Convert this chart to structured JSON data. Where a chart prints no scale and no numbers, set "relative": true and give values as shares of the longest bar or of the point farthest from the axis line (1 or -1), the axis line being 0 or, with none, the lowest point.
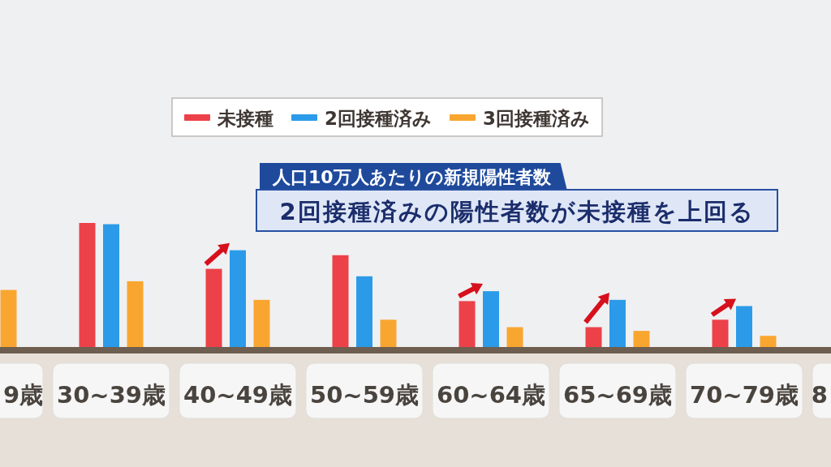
{
  "chart_data": {
    "type": "bar",
    "relative": true,
    "title": "人口10万人あたりの新規陽性者数",
    "subtitle": "2回接種済みの陽性者数が未接種を上回る",
    "categories": [
      "9歳",
      "30~39歳",
      "40~49歳",
      "50~59歳",
      "60~64歳",
      "65~69歳",
      "70~79歳",
      "8"
    ],
    "series": [
      {
        "name": "未接種",
        "color": "#ec4149",
        "values": [
          null,
          1,
          0.63,
          0.74,
          0.37,
          0.16,
          0.22,
          null
        ]
      },
      {
        "name": "2回接種済み",
        "color": "#2b9be9",
        "values": [
          null,
          0.99,
          0.78,
          0.57,
          0.45,
          0.38,
          0.33,
          null
        ]
      },
      {
        "name": "3回接種済み",
        "color": "#f9a630",
        "values": [
          0.46,
          0.53,
          0.38,
          0.22,
          0.16,
          0.13,
          0.09,
          null
        ]
      }
    ],
    "legend": "top"
  }
}
